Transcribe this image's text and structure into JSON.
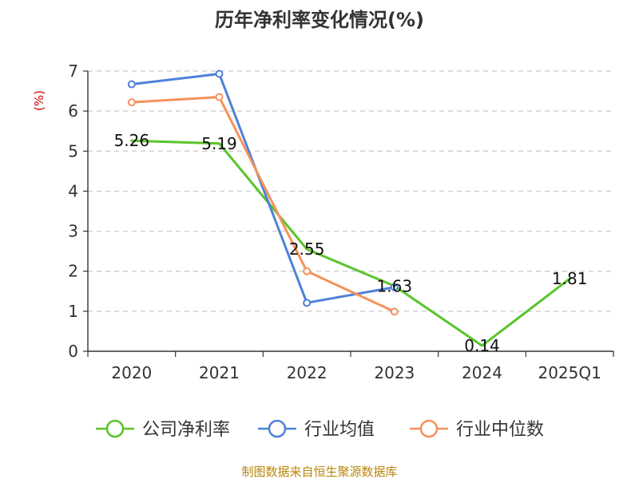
{
  "chart_data": {
    "type": "line",
    "title": "历年净利率变化情况(%)",
    "ylabel": "(%)",
    "categories": [
      "2020",
      "2021",
      "2022",
      "2023",
      "2024",
      "2025Q1"
    ],
    "ylim": [
      0,
      7
    ],
    "yticks": [
      "0",
      "1",
      "2",
      "3",
      "4",
      "5",
      "6",
      "7"
    ],
    "grid": true,
    "legend_position": "bottom",
    "series": [
      {
        "name": "公司净利率",
        "color": "#5ac42b",
        "markers": false,
        "labeled": true,
        "values": [
          5.26,
          5.19,
          2.55,
          1.63,
          0.14,
          1.81
        ],
        "labels": [
          "5.26",
          "5.19",
          "2.55",
          "1.63",
          "0.14",
          "1.81"
        ]
      },
      {
        "name": "行业均值",
        "color": "#4f81d9",
        "markers": true,
        "labeled": false,
        "values": [
          6.67,
          6.93,
          1.21,
          1.6,
          null,
          null
        ]
      },
      {
        "name": "行业中位数",
        "color": "#f5925b",
        "markers": true,
        "labeled": false,
        "values": [
          6.22,
          6.35,
          2.0,
          0.99,
          null,
          null
        ]
      }
    ],
    "source": "制图数据来自恒生聚源数据库"
  }
}
